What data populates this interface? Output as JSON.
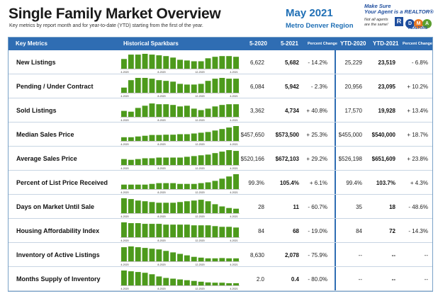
{
  "header": {
    "title": "Single Family Market Overview",
    "subtitle": "Key metrics by report month and for year-to-date (YTD) starting from the first of the year.",
    "period": "May 2021",
    "region": "Metro Denver Region"
  },
  "badge": {
    "line1": "Make Sure",
    "line2": "Your Agent is a REALTOR®",
    "note1": "Not all agents",
    "note2": "are the same!",
    "r_mark": "R",
    "logo_letters": [
      "D",
      "M",
      "A",
      "R"
    ],
    "logo_word": "REALTORS",
    "colors": {
      "blue": "#1f4e9e",
      "orange": "#e87722",
      "green": "#5b9e2f"
    }
  },
  "table": {
    "columns": {
      "metric": "Key Metrics",
      "spark": "Historical Sparkbars",
      "prev": "5-2020",
      "curr": "5-2021",
      "pct": "Percent Change",
      "ytd_prev": "YTD-2020",
      "ytd_curr": "YTD-2021",
      "ytd_pct": "Percent Change"
    },
    "spark_axis_labels": [
      "4-2020",
      "8-2020",
      "12-2020",
      "4-2021"
    ],
    "rows": [
      {
        "metric": "New Listings",
        "prev": "6,622",
        "curr": "5,682",
        "pct": "- 14.2%",
        "ytd_prev": "25,229",
        "ytd_curr": "23,519",
        "ytd_pct": "- 6.8%",
        "bars": [
          0.65,
          0.95,
          0.95,
          1.0,
          0.95,
          0.9,
          0.85,
          0.75,
          0.6,
          0.55,
          0.5,
          0.5,
          0.7,
          0.8,
          0.85,
          0.85,
          0.8
        ]
      },
      {
        "metric": "Pending / Under Contract",
        "prev": "6,084",
        "curr": "5,942",
        "pct": "- 2.3%",
        "ytd_prev": "20,956",
        "ytd_curr": "23,095",
        "ytd_pct": "+ 10.2%",
        "bars": [
          0.35,
          0.85,
          1.0,
          1.0,
          0.95,
          0.85,
          0.8,
          0.75,
          0.6,
          0.55,
          0.55,
          0.6,
          0.8,
          0.95,
          1.0,
          0.95,
          0.95
        ]
      },
      {
        "metric": "Sold Listings",
        "prev": "3,362",
        "curr": "4,734",
        "pct": "+ 40.8%",
        "ytd_prev": "17,570",
        "ytd_curr": "19,928",
        "ytd_pct": "+ 13.4%",
        "bars": [
          0.4,
          0.35,
          0.6,
          0.75,
          0.9,
          0.85,
          0.85,
          0.8,
          0.7,
          0.75,
          0.55,
          0.45,
          0.55,
          0.7,
          0.8,
          0.85,
          0.85
        ]
      },
      {
        "metric": "Median Sales Price",
        "prev": "$457,650",
        "curr": "$573,500",
        "pct": "+ 25.3%",
        "ytd_prev": "$455,000",
        "ytd_curr": "$540,000",
        "ytd_pct": "+ 18.7%",
        "bars": [
          0.25,
          0.25,
          0.3,
          0.35,
          0.4,
          0.4,
          0.42,
          0.42,
          0.45,
          0.45,
          0.5,
          0.55,
          0.6,
          0.7,
          0.8,
          0.9,
          1.0
        ]
      },
      {
        "metric": "Average Sales Price",
        "prev": "$520,166",
        "curr": "$672,103",
        "pct": "+ 29.2%",
        "ytd_prev": "$526,198",
        "ytd_curr": "$651,609",
        "ytd_pct": "+ 23.8%",
        "bars": [
          0.4,
          0.35,
          0.4,
          0.45,
          0.45,
          0.5,
          0.5,
          0.5,
          0.5,
          0.55,
          0.6,
          0.65,
          0.7,
          0.8,
          0.9,
          1.0,
          0.95
        ]
      },
      {
        "metric": "Percent of List Price Received",
        "prev": "99.3%",
        "curr": "105.4%",
        "pct": "+ 6.1%",
        "ytd_prev": "99.4%",
        "ytd_curr": "103.7%",
        "ytd_pct": "+ 4.3%",
        "bars": [
          0.3,
          0.3,
          0.3,
          0.3,
          0.35,
          0.4,
          0.4,
          0.4,
          0.35,
          0.35,
          0.35,
          0.4,
          0.45,
          0.55,
          0.7,
          0.85,
          1.0
        ]
      },
      {
        "metric": "Days on Market Until Sale",
        "prev": "28",
        "curr": "11",
        "pct": "- 60.7%",
        "ytd_prev": "35",
        "ytd_curr": "18",
        "ytd_pct": "- 48.6%",
        "bars": [
          1.0,
          0.95,
          0.85,
          0.8,
          0.75,
          0.7,
          0.7,
          0.7,
          0.75,
          0.8,
          0.85,
          0.9,
          0.8,
          0.6,
          0.45,
          0.35,
          0.3
        ]
      },
      {
        "metric": "Housing Affordability Index",
        "prev": "84",
        "curr": "68",
        "pct": "- 19.0%",
        "ytd_prev": "84",
        "ytd_curr": "72",
        "ytd_pct": "- 14.3%",
        "bars": [
          1.0,
          0.95,
          0.95,
          0.9,
          0.9,
          0.9,
          0.85,
          0.85,
          0.85,
          0.85,
          0.8,
          0.8,
          0.8,
          0.75,
          0.7,
          0.7,
          0.65
        ]
      },
      {
        "metric": "Inventory of Active Listings",
        "prev": "8,630",
        "curr": "2,078",
        "pct": "- 75.9%",
        "ytd_prev": "--",
        "ytd_curr": "--",
        "ytd_pct": "--",
        "bars": [
          0.95,
          1.0,
          0.95,
          0.9,
          0.85,
          0.8,
          0.7,
          0.6,
          0.5,
          0.4,
          0.3,
          0.25,
          0.2,
          0.2,
          0.22,
          0.2,
          0.2
        ]
      },
      {
        "metric": "Months Supply of Inventory",
        "prev": "2.0",
        "curr": "0.4",
        "pct": "- 80.0%",
        "ytd_prev": "--",
        "ytd_curr": "--",
        "ytd_pct": "--",
        "bars": [
          1.0,
          0.95,
          0.9,
          0.85,
          0.75,
          0.6,
          0.5,
          0.45,
          0.4,
          0.35,
          0.3,
          0.25,
          0.2,
          0.18,
          0.18,
          0.15,
          0.15
        ]
      }
    ]
  },
  "colors": {
    "header_bg": "#2f6db3",
    "bar_green": "#4d9a1c",
    "bar_gray": "#bdbdbd"
  }
}
